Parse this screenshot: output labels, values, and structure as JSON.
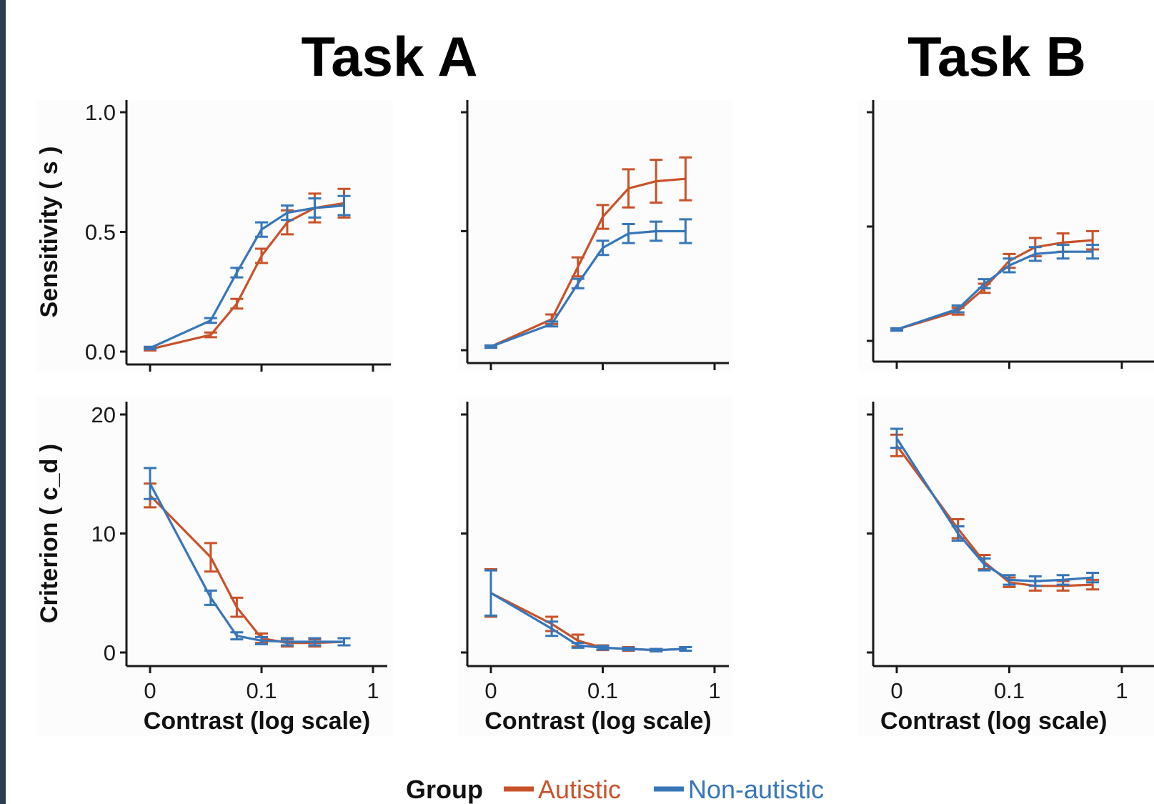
{
  "colors": {
    "autistic": "#c8522a",
    "nonautistic": "#3776b8",
    "panel_bg": "#fcfcfc",
    "axis": "#1a1a1a",
    "frame": "#2b3e50"
  },
  "titles": {
    "task_a": "Task A",
    "task_b": "Task B"
  },
  "legend": {
    "title": "Group",
    "autistic": "Autistic",
    "nonautistic": "Non-autistic"
  },
  "chart_data": [
    {
      "task": "Task A",
      "row": "Sensitivity",
      "type": "line",
      "xscale": "log",
      "x_tick_labels": [],
      "ylabel": "Sensitivity ( s )",
      "ylim": [
        0,
        1
      ],
      "y_ticks": [
        0,
        0.5,
        1
      ],
      "y_tick_labels": [
        "0.0",
        "0.5",
        "1.0"
      ],
      "show_y_tick_labels": true,
      "xlabel": "",
      "series": [
        {
          "name": "Autistic",
          "x": [
            0.01,
            0.035,
            0.06,
            0.1,
            0.17,
            0.3,
            0.55
          ],
          "y": [
            0.01,
            0.07,
            0.2,
            0.4,
            0.54,
            0.6,
            0.62
          ],
          "err": [
            0.005,
            0.01,
            0.02,
            0.03,
            0.05,
            0.06,
            0.06
          ]
        },
        {
          "name": "Non-autistic",
          "x": [
            0.01,
            0.035,
            0.06,
            0.1,
            0.17,
            0.3,
            0.55
          ],
          "y": [
            0.015,
            0.13,
            0.33,
            0.51,
            0.58,
            0.6,
            0.61
          ],
          "err": [
            0.005,
            0.01,
            0.02,
            0.03,
            0.03,
            0.04,
            0.04
          ]
        }
      ]
    },
    {
      "task": "Task A",
      "row": "Sensitivity",
      "type": "line",
      "xscale": "log",
      "ylim": [
        0,
        1
      ],
      "y_ticks": [
        0,
        0.5,
        1
      ],
      "show_y_tick_labels": false,
      "series": [
        {
          "name": "Autistic",
          "x": [
            0.01,
            0.035,
            0.06,
            0.1,
            0.17,
            0.3,
            0.55
          ],
          "y": [
            0.015,
            0.13,
            0.35,
            0.56,
            0.68,
            0.71,
            0.72
          ],
          "err": [
            0.005,
            0.02,
            0.04,
            0.05,
            0.08,
            0.09,
            0.09
          ]
        },
        {
          "name": "Non-autistic",
          "x": [
            0.01,
            0.035,
            0.06,
            0.1,
            0.17,
            0.3,
            0.55
          ],
          "y": [
            0.015,
            0.11,
            0.28,
            0.43,
            0.49,
            0.5,
            0.5
          ],
          "err": [
            0.005,
            0.01,
            0.02,
            0.03,
            0.04,
            0.04,
            0.05
          ]
        }
      ]
    },
    {
      "task": "Task B",
      "row": "Sensitivity",
      "type": "line",
      "xscale": "log",
      "ylim": [
        0,
        1
      ],
      "y_ticks": [
        0,
        0.5,
        1
      ],
      "show_y_tick_labels": false,
      "series": [
        {
          "name": "Autistic",
          "x": [
            0.01,
            0.035,
            0.06,
            0.1,
            0.17,
            0.3,
            0.55
          ],
          "y": [
            0.05,
            0.13,
            0.23,
            0.35,
            0.41,
            0.43,
            0.44
          ],
          "err": [
            0.005,
            0.015,
            0.02,
            0.03,
            0.04,
            0.04,
            0.04
          ]
        },
        {
          "name": "Non-autistic",
          "x": [
            0.01,
            0.035,
            0.06,
            0.1,
            0.17,
            0.3,
            0.55
          ],
          "y": [
            0.05,
            0.14,
            0.25,
            0.33,
            0.38,
            0.39,
            0.39
          ],
          "err": [
            0.005,
            0.015,
            0.02,
            0.03,
            0.03,
            0.03,
            0.03
          ]
        }
      ]
    },
    {
      "task": "Task A",
      "row": "Criterion",
      "type": "line",
      "xscale": "log",
      "ylabel": "Criterion ( c_d )",
      "ylim": [
        0,
        20
      ],
      "y_ticks": [
        0,
        10,
        20
      ],
      "y_tick_labels": [
        "0",
        "10",
        "20"
      ],
      "show_y_tick_labels": true,
      "x_tick_labels": [
        "0",
        "0.1",
        "1"
      ],
      "xlabel": "Contrast (log scale)",
      "series": [
        {
          "name": "Autistic",
          "x": [
            0.01,
            0.035,
            0.06,
            0.1,
            0.17,
            0.3,
            0.55
          ],
          "y": [
            13.2,
            8.0,
            3.8,
            1.2,
            0.8,
            0.8,
            0.9
          ],
          "err": [
            1.0,
            1.2,
            0.8,
            0.4,
            0.3,
            0.3,
            0.3
          ]
        },
        {
          "name": "Non-autistic",
          "x": [
            0.01,
            0.035,
            0.06,
            0.1,
            0.17,
            0.3,
            0.55
          ],
          "y": [
            14.2,
            4.6,
            1.4,
            1.0,
            0.9,
            0.9,
            0.9
          ],
          "err": [
            1.3,
            0.6,
            0.3,
            0.3,
            0.3,
            0.3,
            0.3
          ]
        }
      ]
    },
    {
      "task": "Task A",
      "row": "Criterion",
      "type": "line",
      "xscale": "log",
      "ylim": [
        0,
        20
      ],
      "y_ticks": [
        0,
        10,
        20
      ],
      "show_y_tick_labels": false,
      "x_tick_labels": [
        "0",
        "0.1",
        "1"
      ],
      "xlabel": "Contrast (log scale)",
      "series": [
        {
          "name": "Autistic",
          "x": [
            0.01,
            0.035,
            0.06,
            0.1,
            0.17,
            0.3,
            0.55
          ],
          "y": [
            5.0,
            2.4,
            1.0,
            0.4,
            0.3,
            0.2,
            0.3
          ],
          "err": [
            2.0,
            0.6,
            0.5,
            0.2,
            0.15,
            0.1,
            0.15
          ]
        },
        {
          "name": "Non-autistic",
          "x": [
            0.01,
            0.035,
            0.06,
            0.1,
            0.17,
            0.3,
            0.55
          ],
          "y": [
            5.0,
            2.0,
            0.6,
            0.4,
            0.3,
            0.2,
            0.3
          ],
          "err": [
            1.9,
            0.6,
            0.2,
            0.15,
            0.1,
            0.1,
            0.15
          ]
        }
      ]
    },
    {
      "task": "Task B",
      "row": "Criterion",
      "type": "line",
      "xscale": "log",
      "ylim": [
        0,
        20
      ],
      "y_ticks": [
        0,
        10,
        20
      ],
      "show_y_tick_labels": false,
      "x_tick_labels": [
        "0",
        "0.1",
        "1"
      ],
      "xlabel": "Contrast (log scale)",
      "series": [
        {
          "name": "Autistic",
          "x": [
            0.01,
            0.035,
            0.06,
            0.1,
            0.17,
            0.3,
            0.55
          ],
          "y": [
            17.4,
            10.4,
            7.6,
            5.9,
            5.6,
            5.6,
            5.7
          ],
          "err": [
            0.9,
            0.8,
            0.6,
            0.4,
            0.4,
            0.4,
            0.4
          ]
        },
        {
          "name": "Non-autistic",
          "x": [
            0.01,
            0.035,
            0.06,
            0.1,
            0.17,
            0.3,
            0.55
          ],
          "y": [
            18.0,
            10.0,
            7.4,
            6.1,
            6.0,
            6.1,
            6.3
          ],
          "err": [
            0.8,
            0.6,
            0.5,
            0.4,
            0.4,
            0.4,
            0.4
          ]
        }
      ]
    }
  ]
}
